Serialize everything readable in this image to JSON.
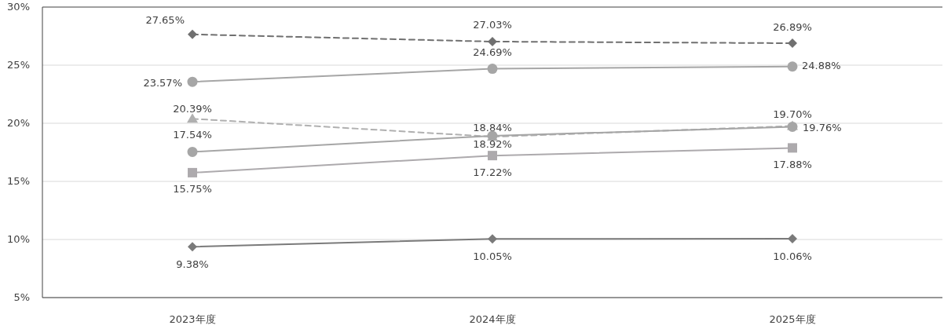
{
  "chart_data": {
    "type": "line",
    "categories": [
      "2023年度",
      "2024年度",
      "2025年度"
    ],
    "ylim": [
      5,
      30
    ],
    "yticks": [
      {
        "value": 5,
        "label": "5%"
      },
      {
        "value": 10,
        "label": "10%"
      },
      {
        "value": 15,
        "label": "15%"
      },
      {
        "value": 20,
        "label": "20%"
      },
      {
        "value": 25,
        "label": "25%"
      },
      {
        "value": 30,
        "label": "30%"
      }
    ],
    "grid": "y",
    "series": [
      {
        "color": "#707070",
        "marker": "diamond",
        "line_style": "dashed",
        "values": [
          27.65,
          27.03,
          26.89
        ],
        "value_labels": [
          "27.65%",
          "27.03%",
          "26.89%"
        ]
      },
      {
        "color": "#a6a6a6",
        "marker": "circle",
        "line_style": "solid",
        "values": [
          23.57,
          24.69,
          24.88
        ],
        "value_labels": [
          "23.57%",
          "24.69%",
          "24.88%"
        ]
      },
      {
        "color": "#b0b0b0",
        "marker": "triangle",
        "line_style": "dashed",
        "values": [
          20.39,
          18.84,
          19.76
        ],
        "value_labels": [
          "20.39%",
          "18.84%",
          "19.76%"
        ]
      },
      {
        "color": "#a6a6a6",
        "marker": "circle",
        "line_style": "solid",
        "values": [
          17.54,
          18.92,
          19.7
        ],
        "value_labels": [
          "17.54%",
          "18.92%",
          "19.70%"
        ]
      },
      {
        "color": "#adaaad",
        "marker": "square",
        "line_style": "solid",
        "values": [
          15.75,
          17.22,
          17.88
        ],
        "value_labels": [
          "15.75%",
          "17.22%",
          "17.88%"
        ]
      },
      {
        "color": "#7a7a7a",
        "marker": "diamond",
        "line_style": "solid",
        "values": [
          9.38,
          10.05,
          10.06
        ],
        "value_labels": [
          "9.38%",
          "10.05%",
          "10.06%"
        ]
      }
    ]
  }
}
